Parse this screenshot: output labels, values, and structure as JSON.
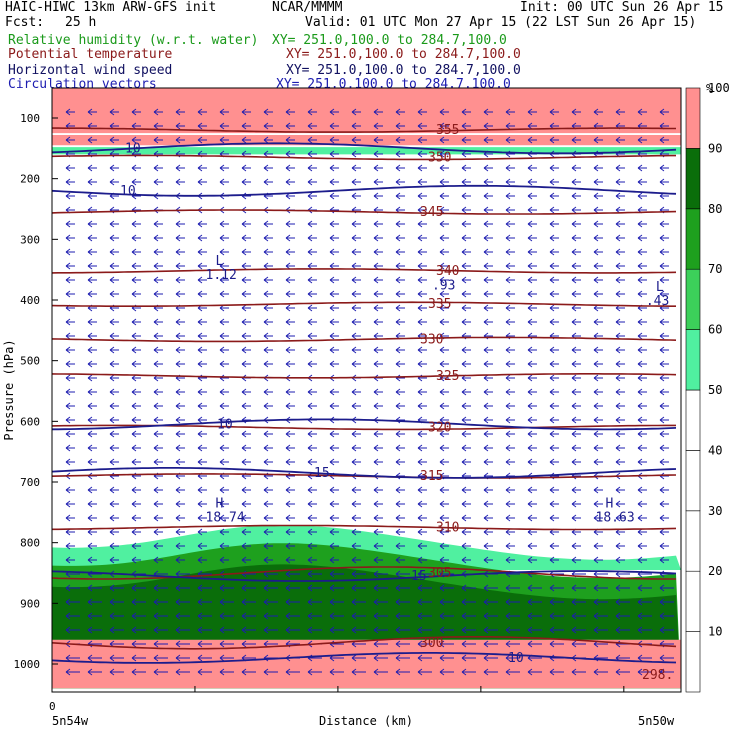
{
  "header": {
    "model": "HAIC-HIWC 13km ARW-GFS init",
    "org": "NCAR/MMMM",
    "init": "Init: 00 UTC Sun 26 Apr 15",
    "fcst_label": "Fcst:",
    "fcst_value": "25 h",
    "valid": "Valid: 01 UTC Mon 27 Apr 15 (22 LST Sun 26 Apr 15)",
    "fields": [
      {
        "name": "Relative humidity (w.r.t. water)",
        "xy": "XY= 251.0,100.0 to 284.7,100.0",
        "color": "#1a9a1a"
      },
      {
        "name": "Potential temperature",
        "xy": "XY= 251.0,100.0 to 284.7,100.0",
        "color": "#8b1a1a"
      },
      {
        "name": "Horizontal wind speed",
        "xy": "XY= 251.0,100.0 to 284.7,100.0",
        "color": "#101060"
      },
      {
        "name": "Circulation vectors",
        "xy": "XY= 251.0,100.0 to 284.7,100.0",
        "color": "#1c1cb0"
      }
    ]
  },
  "colors": {
    "theta": "#8b1a1a",
    "wind": "#1c1c8c",
    "vectors": "#1c1cb0",
    "rh_bands": [
      "#ffffff",
      "#ffffff",
      "#ffffff",
      "#ffffff",
      "#ffffff",
      "#50f0a0",
      "#3cd05a",
      "#1ea01e",
      "#0a6e0a",
      "#ff9090"
    ]
  },
  "chart_data": {
    "type": "cross-section",
    "xlabel": "Distance (km)",
    "ylabel": "Pressure (hPa)",
    "x_start_tick": "0",
    "x_left_label": "5n54w",
    "x_right_label": "5n50w",
    "pressure_ticks": [
      100,
      200,
      300,
      400,
      500,
      600,
      700,
      800,
      900,
      1000
    ],
    "ylim": [
      1050,
      50
    ],
    "colorbar": {
      "unit": "%",
      "levels": [
        0,
        10,
        20,
        30,
        40,
        50,
        60,
        70,
        80,
        90,
        100
      ],
      "tick_labels": [
        "10",
        "20",
        "30",
        "40",
        "50",
        "60",
        "70",
        "80",
        "90",
        "100"
      ]
    },
    "rh_layers": [
      {
        "p_top": 50,
        "p_bottom": 125,
        "rh": 100
      },
      {
        "p_top": 128,
        "p_bottom": 145,
        "rh": 95
      },
      {
        "p_top": 148,
        "p_bottom": 160,
        "rh": 55
      },
      {
        "p_top": 815,
        "p_bottom": 845,
        "rh": 55
      },
      {
        "p_top": 845,
        "p_bottom": 1040,
        "rh": 75
      },
      {
        "p_top": 880,
        "p_bottom": 1040,
        "rh": 85
      },
      {
        "p_top": 960,
        "p_bottom": 1040,
        "rh": 95
      }
    ],
    "potential_temperature": [
      {
        "level": "300",
        "p": 965
      },
      {
        "level": "305",
        "p": 850
      },
      {
        "level": "310",
        "p": 775
      },
      {
        "level": "315",
        "p": 690
      },
      {
        "level": "320",
        "p": 610
      },
      {
        "level": "325",
        "p": 525
      },
      {
        "level": "330",
        "p": 465
      },
      {
        "level": "335",
        "p": 407
      },
      {
        "level": "340",
        "p": 352
      },
      {
        "level": "345",
        "p": 255
      },
      {
        "level": "350",
        "p": 165
      },
      {
        "level": "355",
        "p": 120
      }
    ],
    "wind_speed": [
      {
        "level": "10",
        "p": 220
      },
      {
        "level": "10",
        "p": 605
      },
      {
        "level": "15",
        "p": 685
      },
      {
        "level": "15",
        "p": 855
      },
      {
        "level": "10",
        "p": 990
      },
      {
        "level": "10",
        "p": 150
      }
    ],
    "extrema": [
      {
        "kind": "L",
        "value": "1.12",
        "x_km": 0.26,
        "p": 365
      },
      {
        "kind": "",
        "value": ".93",
        "x_km": 0.62,
        "p": 383
      },
      {
        "kind": "L",
        "value": ".43",
        "x_km": 0.96,
        "p": 408
      },
      {
        "kind": "H",
        "value": "18.74",
        "x_km": 0.26,
        "p": 765
      },
      {
        "kind": "H",
        "value": "18.63",
        "x_km": 0.88,
        "p": 765
      }
    ],
    "surface_theta_label": "298."
  }
}
